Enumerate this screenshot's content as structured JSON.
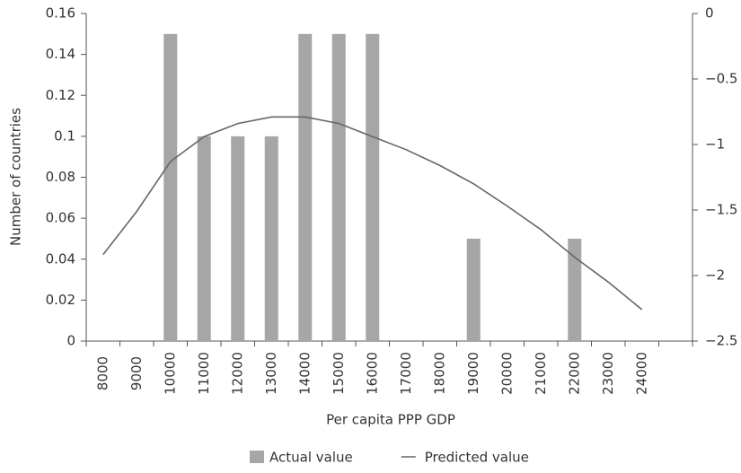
{
  "chart_data": {
    "type": "bar-line",
    "x_label": "Per capita PPP GDP",
    "y_label": "Number of countries",
    "categories": [
      "8000",
      "9000",
      "10000",
      "11000",
      "12000",
      "13000",
      "14000",
      "15000",
      "16000",
      "17000",
      "18000",
      "19000",
      "20000",
      "21000",
      "22000",
      "23000",
      "24000",
      null
    ],
    "series": [
      {
        "name": "Actual value",
        "type": "bar",
        "color": "#a6a6a6",
        "values": [
          0,
          0,
          0.15,
          0.1,
          0.1,
          0.1,
          0.15,
          0.15,
          0.15,
          0,
          0,
          0.05,
          0,
          0,
          0.05,
          0,
          0,
          null
        ]
      },
      {
        "name": "Predicted value",
        "type": "line",
        "color": "#666666",
        "axis": "y2",
        "values": [
          -1.84,
          -1.51,
          -1.13,
          -0.94,
          -0.84,
          -0.79,
          -0.79,
          -0.84,
          -0.94,
          -1.04,
          -1.16,
          -1.3,
          -1.47,
          -1.65,
          -1.86,
          -2.05,
          -2.26,
          null
        ]
      }
    ],
    "ylim": [
      0,
      0.16
    ],
    "yticks": [
      0,
      0.02,
      0.04,
      0.06,
      0.08,
      0.1,
      0.12,
      0.14,
      0.16
    ],
    "y2lim": [
      -2.5,
      0
    ],
    "y2ticks": [
      0,
      {
        "value": -0.5,
        "label": "−0.5"
      },
      {
        "value": -1,
        "label": "−1"
      },
      {
        "value": -1.5,
        "label": "−1.5"
      },
      {
        "value": -2,
        "label": "−2"
      },
      {
        "value": -2.5,
        "label": "−2.5"
      }
    ],
    "grid": false,
    "legend": "bottom"
  }
}
